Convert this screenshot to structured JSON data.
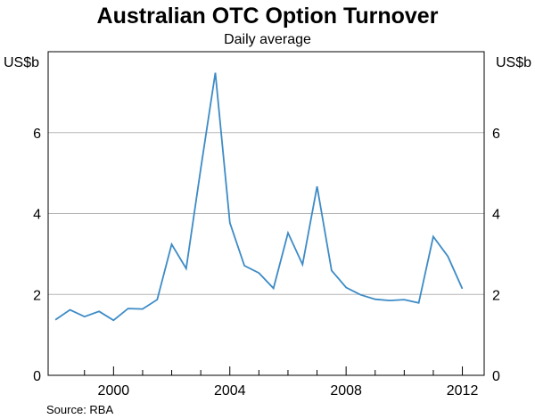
{
  "chart_data": {
    "type": "line",
    "title": "Australian OTC Option Turnover",
    "subtitle": "Daily average",
    "ylabel_left": "US$b",
    "ylabel_right": "US$b",
    "source": "Source: RBA",
    "ylim": [
      0,
      8
    ],
    "yticks": [
      0,
      2,
      4,
      6
    ],
    "xlim": [
      1997.75,
      2012.75
    ],
    "xticks_major": [
      2000,
      2004,
      2008,
      2012
    ],
    "xticks_minor": [
      1999,
      2001,
      2002,
      2003,
      2005,
      2006,
      2007,
      2009,
      2010,
      2011
    ],
    "grid": true,
    "line_color": "#3d8bc6",
    "series": [
      {
        "name": "",
        "x": [
          1998.0,
          1998.5,
          1999.0,
          1999.5,
          2000.0,
          2000.5,
          2001.0,
          2001.5,
          2002.0,
          2002.5,
          2003.0,
          2003.5,
          2004.0,
          2004.5,
          2005.0,
          2005.5,
          2006.0,
          2006.5,
          2007.0,
          2007.5,
          2008.0,
          2008.5,
          2009.0,
          2009.5,
          2010.0,
          2010.5,
          2011.0,
          2011.5,
          2012.0
        ],
        "values": [
          1.37,
          1.62,
          1.45,
          1.58,
          1.36,
          1.65,
          1.64,
          1.87,
          3.24,
          2.64,
          5.1,
          7.48,
          3.77,
          2.71,
          2.53,
          2.15,
          3.52,
          2.74,
          4.67,
          2.59,
          2.17,
          1.99,
          1.88,
          1.85,
          1.87,
          1.79,
          3.43,
          2.94,
          2.14
        ]
      }
    ]
  }
}
